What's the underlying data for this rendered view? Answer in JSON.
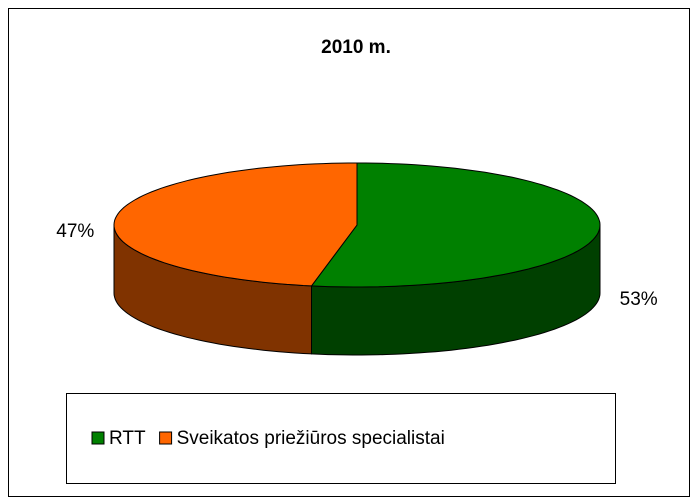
{
  "chart_data": {
    "type": "pie",
    "title": "2010 m.",
    "categories": [
      "RTT",
      "Sveikatos priežiūros specialistai"
    ],
    "values": [
      53,
      47
    ],
    "value_labels": [
      "53%",
      "47%"
    ],
    "colors": [
      "#008000",
      "#ff6600"
    ],
    "legend": "bottom"
  }
}
